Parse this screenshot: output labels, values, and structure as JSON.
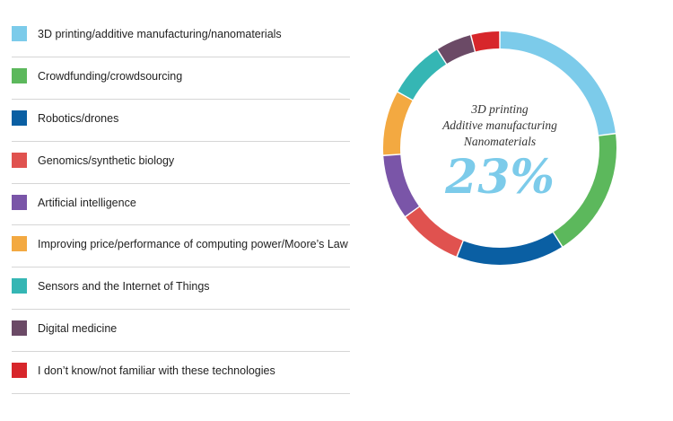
{
  "chart_data": {
    "type": "pie",
    "donut": true,
    "legend_position": "left",
    "categories": [
      "3D printing/additive manufacturing/nanomaterials",
      "Crowdfunding/crowdsourcing",
      "Robotics/drones",
      "Genomics/synthetic biology",
      "Artificial intelligence",
      "Improving price/performance of computing power/Moore’s Law",
      "Sensors and the Internet of Things",
      "Digital medicine",
      "I don’t know/not familiar with these technologies"
    ],
    "values": [
      23,
      18,
      15,
      9,
      9,
      9,
      8,
      5,
      4
    ],
    "colors": [
      "#7ccbea",
      "#5cb85c",
      "#0a5fa3",
      "#e0524f",
      "#7a55a8",
      "#f3a941",
      "#35b6b4",
      "#6b4a66",
      "#d7262b"
    ],
    "center_label": {
      "lines": [
        "3D printing",
        "Additive manufacturing",
        "Nanomaterials"
      ],
      "value": "23%",
      "color": "#7ccbea"
    }
  }
}
